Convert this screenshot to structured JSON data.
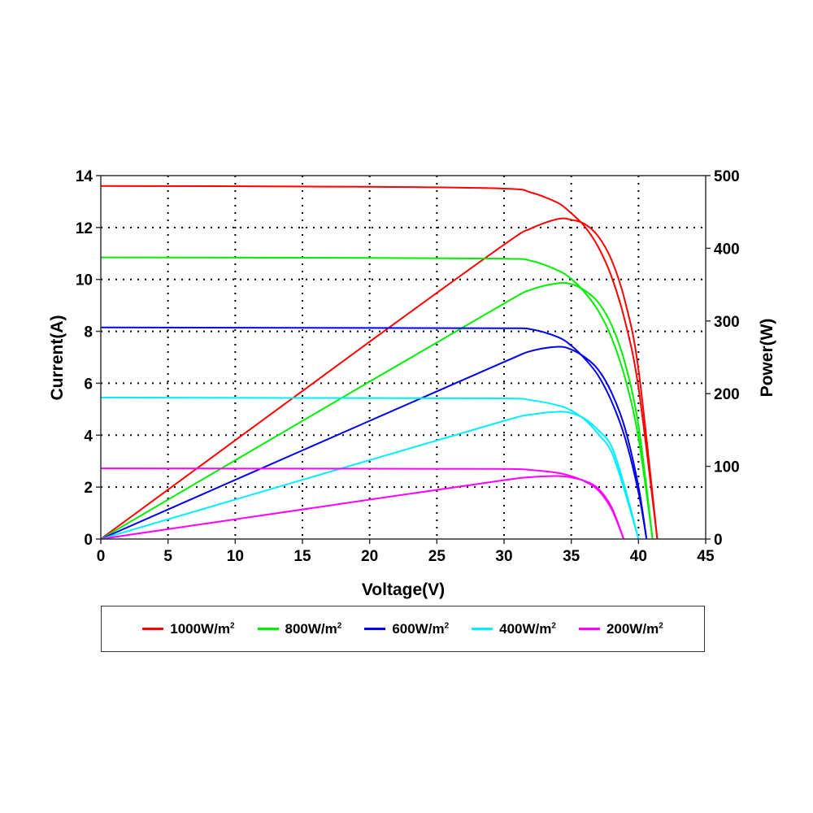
{
  "chart_data": {
    "type": "line",
    "xlabel": "Voltage(V)",
    "ylabel": "Current(A)",
    "y2label": "Power(W)",
    "xlim": [
      0,
      45
    ],
    "ylim": [
      0,
      14
    ],
    "y2lim": [
      0,
      500
    ],
    "xticks": [
      0,
      5,
      10,
      15,
      20,
      25,
      30,
      35,
      40,
      45
    ],
    "yticks": [
      0,
      2,
      4,
      6,
      8,
      10,
      12,
      14
    ],
    "y2ticks": [
      0,
      100,
      200,
      300,
      400,
      500
    ],
    "grid": true,
    "legend_position": "bottom",
    "power_is_voltage_times_current": true,
    "series": [
      {
        "name": "1000W/m",
        "sup": "2",
        "color": "#ff0000",
        "voltage": [
          0,
          20,
          30,
          32,
          34,
          35,
          36,
          37,
          38,
          39,
          40,
          41.4
        ],
        "current": [
          13.6,
          13.57,
          13.5,
          13.35,
          12.95,
          12.55,
          12.04,
          11.26,
          10.1,
          8.39,
          5.83,
          0
        ]
      },
      {
        "name": "800W/m",
        "sup": "2",
        "color": "#00ee00",
        "voltage": [
          0,
          20,
          30,
          32,
          34,
          35,
          36,
          37,
          38,
          39,
          40,
          41.05
        ],
        "current": [
          10.85,
          10.83,
          10.8,
          10.72,
          10.35,
          10.02,
          9.5,
          8.8,
          7.75,
          6.2,
          3.9,
          0
        ]
      },
      {
        "name": "600W/m",
        "sup": "2",
        "color": "#0000ee",
        "voltage": [
          0,
          20,
          30,
          32,
          34,
          35,
          36,
          37,
          38,
          39,
          40,
          40.6
        ],
        "current": [
          8.15,
          8.13,
          8.12,
          8.08,
          7.78,
          7.45,
          6.95,
          6.3,
          5.3,
          3.9,
          1.8,
          0
        ]
      },
      {
        "name": "400W/m",
        "sup": "2",
        "color": "#00eeff",
        "voltage": [
          0,
          20,
          30,
          32,
          34,
          35,
          36,
          37,
          38,
          39,
          40
        ],
        "current": [
          5.45,
          5.43,
          5.42,
          5.35,
          5.15,
          4.95,
          4.6,
          4.05,
          3.35,
          1.8,
          0
        ]
      },
      {
        "name": "200W/m",
        "sup": "2",
        "color": "#ff00ff",
        "voltage": [
          0,
          20,
          30,
          32,
          34,
          35,
          36,
          37,
          38,
          38.9
        ],
        "current": [
          2.72,
          2.71,
          2.7,
          2.66,
          2.55,
          2.42,
          2.22,
          1.88,
          1.15,
          0
        ]
      }
    ]
  }
}
